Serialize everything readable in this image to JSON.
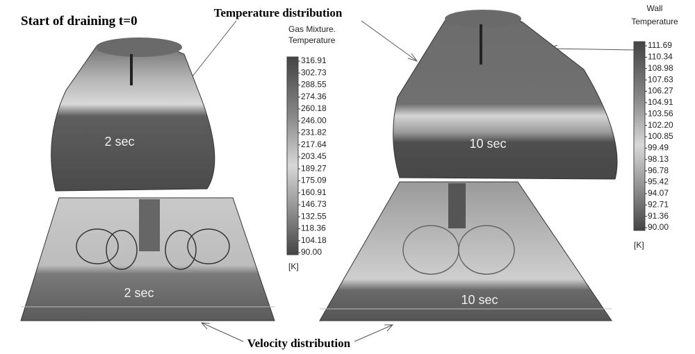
{
  "header": {
    "title": "Start of draining t=0"
  },
  "annotations": {
    "temperature": "Temperature distribution",
    "velocity": "Velocity distribution"
  },
  "panels": [
    {
      "label": "2 sec"
    },
    {
      "label": "10 sec"
    },
    {
      "label": "2 sec"
    },
    {
      "label": "10 sec"
    }
  ],
  "legends": [
    {
      "title": [
        "Gas Mixture.",
        "Temperature"
      ],
      "labels": [
        "316.91",
        "302.73",
        "288.55",
        "274.36",
        "260.18",
        "246.00",
        "231.82",
        "217.64",
        "203.45",
        "189.27",
        "175.09",
        "160.91",
        "146.73",
        "132.55",
        "118.36",
        "104.18",
        "90.00"
      ],
      "unit": "[K]"
    },
    {
      "title": [
        "Wall",
        "Temperature"
      ],
      "labels": [
        "111.69",
        "110.34",
        "108.98",
        "107.63",
        "106.27",
        "104.91",
        "103.56",
        "102.20",
        "100.85",
        "99.49",
        "98.13",
        "96.78",
        "95.42",
        "94.07",
        "92.71",
        "91.36",
        "90.00"
      ],
      "unit": "[K]"
    }
  ]
}
